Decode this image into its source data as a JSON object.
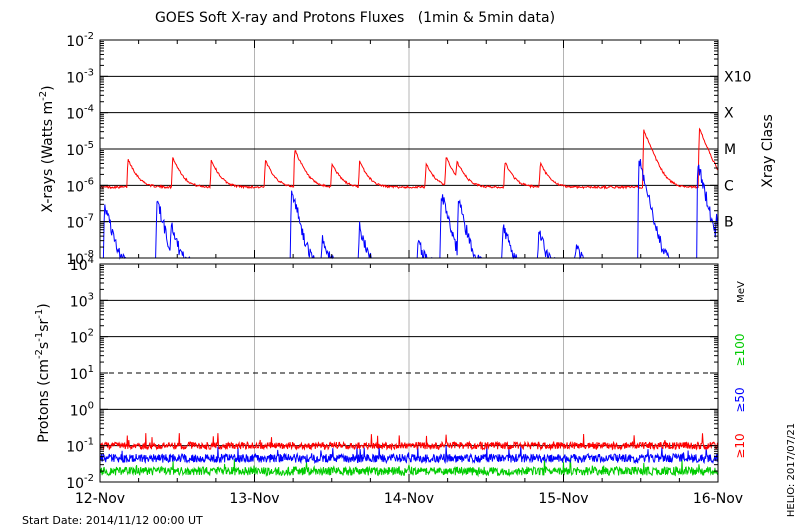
{
  "chart_data": [
    {
      "type": "line",
      "title": "GOES Soft X-ray and Protons Fluxes   (1min & 5min data)",
      "ylabel_main": "X-rays (Watts m",
      "ylabel_sup": "-2",
      "ylabel_close": ")",
      "right_label": "Xray Class",
      "yscale": "log",
      "ylim_exp": [
        -8,
        -2
      ],
      "y_tick_exponents": [
        -8,
        -7,
        -6,
        -5,
        -4,
        -3,
        -2
      ],
      "class_labels": [
        {
          "name": "B",
          "exp": -7
        },
        {
          "name": "C",
          "exp": -6
        },
        {
          "name": "M",
          "exp": -5
        },
        {
          "name": "X",
          "exp": -4
        },
        {
          "name": "X10",
          "exp": -3
        }
      ],
      "series": [
        {
          "color": "#ff0000",
          "baseline_exp": -6.05,
          "events": [
            {
              "day": 0.18,
              "peak_exp": -5.35
            },
            {
              "day": 0.47,
              "peak_exp": -5.3
            },
            {
              "day": 0.72,
              "peak_exp": -5.4
            },
            {
              "day": 1.07,
              "peak_exp": -5.4
            },
            {
              "day": 1.26,
              "peak_exp": -5.05
            },
            {
              "day": 1.5,
              "peak_exp": -5.5
            },
            {
              "day": 1.68,
              "peak_exp": -5.45
            },
            {
              "day": 2.11,
              "peak_exp": -5.5
            },
            {
              "day": 2.24,
              "peak_exp": -5.3
            },
            {
              "day": 2.31,
              "peak_exp": -5.55
            },
            {
              "day": 2.62,
              "peak_exp": -5.45
            },
            {
              "day": 2.85,
              "peak_exp": -5.5
            },
            {
              "day": 3.52,
              "peak_exp": -4.5
            },
            {
              "day": 3.88,
              "peak_exp": -4.45
            }
          ]
        },
        {
          "color": "#0000ff",
          "baseline_exp": -8.2,
          "events": [
            {
              "day": 0.03,
              "peak_exp": -6.5
            },
            {
              "day": 0.37,
              "peak_exp": -6.4
            },
            {
              "day": 0.46,
              "peak_exp": -7.1
            },
            {
              "day": 1.24,
              "peak_exp": -6.1
            },
            {
              "day": 1.44,
              "peak_exp": -7.6
            },
            {
              "day": 1.68,
              "peak_exp": -7.2
            },
            {
              "day": 2.06,
              "peak_exp": -7.6
            },
            {
              "day": 2.21,
              "peak_exp": -6.2
            },
            {
              "day": 2.32,
              "peak_exp": -6.4
            },
            {
              "day": 2.61,
              "peak_exp": -7.1
            },
            {
              "day": 2.84,
              "peak_exp": -7.3
            },
            {
              "day": 3.08,
              "peak_exp": -7.8
            },
            {
              "day": 3.49,
              "peak_exp": -5.3
            },
            {
              "day": 3.87,
              "peak_exp": -5.4
            },
            {
              "day": 3.99,
              "peak_exp": -7.0
            }
          ]
        }
      ]
    },
    {
      "type": "line",
      "ylabel_main": "Protons (cm",
      "ylabel_parts": [
        "-2",
        "s",
        "-1",
        "sr",
        "-1"
      ],
      "ylabel_close": ")",
      "yscale": "log",
      "ylim_exp": [
        -2,
        4
      ],
      "y_tick_exponents": [
        -2,
        -1,
        0,
        1,
        2,
        3,
        4
      ],
      "dashed_line_exp": 1,
      "unit_label": "MeV",
      "series": [
        {
          "name": "≥100",
          "color": "#00cc00",
          "mean": 0.02,
          "spread": 0.12
        },
        {
          "name": "≥50",
          "color": "#0000ff",
          "mean": 0.045,
          "spread": 0.12
        },
        {
          "name": "≥10",
          "color": "#ff0000",
          "mean": 0.1,
          "spread": 0.1
        }
      ]
    }
  ],
  "x_axis": {
    "tick_labels": [
      "12-Nov",
      "13-Nov",
      "14-Nov",
      "15-Nov",
      "16-Nov"
    ],
    "range_days": [
      0,
      4
    ]
  },
  "footer": {
    "start_date": "Start Date: 2014/11/12 00:00 UT",
    "credit": "HELIO: 2017/07/21"
  }
}
